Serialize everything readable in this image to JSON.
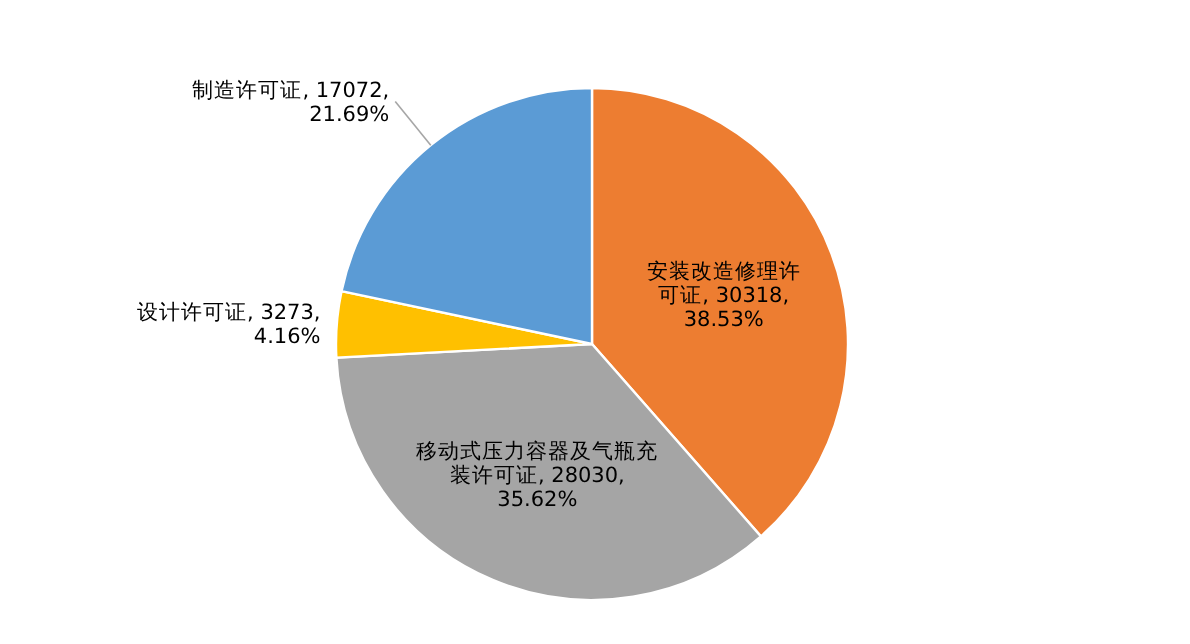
{
  "chart_data": {
    "type": "pie",
    "categories": [
      "安装改造修理许可证",
      "移动式压力容器及气瓶充装许可证",
      "设计许可证",
      "制造许可证"
    ],
    "values": [
      38.53,
      35.62,
      4.16,
      21.69
    ],
    "value_labels": [
      "30318, 38.53%",
      "28030, 35.62%",
      "3273, 4.16%",
      "17072, 21.69%"
    ],
    "colors": [
      "#ed7d31",
      "#a5a5a5",
      "#ffc000",
      "#5b9bd5"
    ],
    "data_labels": true
  }
}
